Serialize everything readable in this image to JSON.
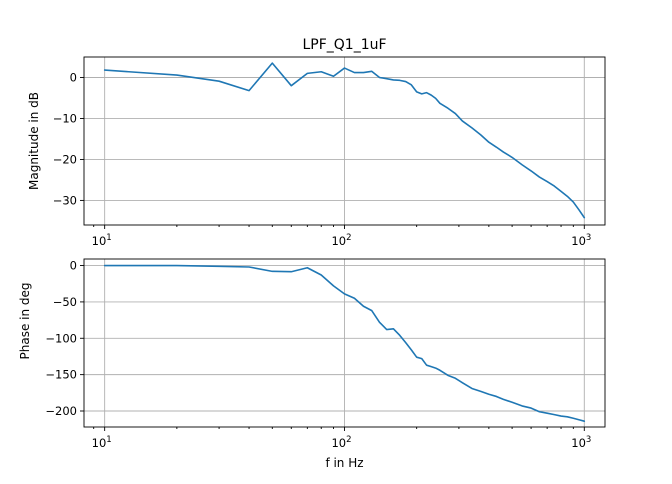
{
  "chart_data": [
    {
      "type": "line",
      "title": "LPF_Q1_1uF",
      "xlabel": "",
      "ylabel": "Magnitude in dB",
      "xscale": "log",
      "xlim": [
        8.2,
        1220
      ],
      "ylim": [
        -36,
        5
      ],
      "grid": true,
      "color": "#1f77b4",
      "x_ticks": [
        10,
        100,
        1000
      ],
      "x_tick_labels": [
        {
          "base": "10",
          "exp": "1"
        },
        {
          "base": "10",
          "exp": "2"
        },
        {
          "base": "10",
          "exp": "3"
        }
      ],
      "y_ticks": [
        0,
        -10,
        -20,
        -30
      ],
      "y_tick_labels": [
        "0",
        "−10",
        "−20",
        "−30"
      ],
      "series": [
        {
          "x": [
            10,
            20,
            30,
            40,
            50,
            60,
            70,
            80,
            90,
            100,
            110,
            120,
            130,
            140,
            150,
            160,
            170,
            180,
            190,
            200,
            210,
            220,
            230,
            240,
            250,
            270,
            290,
            310,
            340,
            370,
            400,
            430,
            460,
            500,
            550,
            600,
            650,
            700,
            750,
            800,
            850,
            900,
            950,
            1000
          ],
          "y": [
            1.8,
            0.6,
            -0.9,
            -3.2,
            3.5,
            -2.0,
            1.0,
            1.4,
            0.3,
            2.3,
            1.2,
            1.2,
            1.5,
            0.0,
            -0.3,
            -0.6,
            -0.7,
            -1.0,
            -1.8,
            -3.5,
            -4.0,
            -3.7,
            -4.3,
            -5.1,
            -6.3,
            -7.5,
            -8.8,
            -10.6,
            -12.3,
            -14.0,
            -15.8,
            -17.0,
            -18.2,
            -19.5,
            -21.3,
            -22.8,
            -24.3,
            -25.4,
            -26.5,
            -27.8,
            -29.0,
            -30.4,
            -32.3,
            -34.2
          ]
        }
      ]
    },
    {
      "type": "line",
      "title": "",
      "xlabel": "f in Hz",
      "ylabel": "Phase in deg",
      "xscale": "log",
      "xlim": [
        8.2,
        1220
      ],
      "ylim": [
        -222,
        9
      ],
      "grid": true,
      "color": "#1f77b4",
      "x_ticks": [
        10,
        100,
        1000
      ],
      "x_tick_labels": [
        {
          "base": "10",
          "exp": "1"
        },
        {
          "base": "10",
          "exp": "2"
        },
        {
          "base": "10",
          "exp": "3"
        }
      ],
      "y_ticks": [
        0,
        -50,
        -100,
        -150,
        -200
      ],
      "y_tick_labels": [
        "0",
        "−50",
        "−100",
        "−150",
        "−200"
      ],
      "series": [
        {
          "x": [
            10,
            20,
            30,
            40,
            50,
            60,
            70,
            80,
            90,
            100,
            110,
            120,
            130,
            140,
            150,
            160,
            170,
            180,
            190,
            200,
            210,
            220,
            230,
            240,
            250,
            270,
            290,
            310,
            340,
            370,
            400,
            430,
            460,
            500,
            550,
            600,
            650,
            700,
            750,
            800,
            850,
            900,
            950,
            1000
          ],
          "y": [
            0,
            0,
            -1,
            -2,
            -8,
            -8.5,
            -3,
            -13,
            -28,
            -39,
            -45,
            -56,
            -62,
            -78,
            -88,
            -87,
            -96,
            -106,
            -116,
            -126,
            -128,
            -137,
            -139,
            -141,
            -144,
            -151,
            -155,
            -161,
            -169,
            -173,
            -177,
            -180,
            -184,
            -188,
            -193,
            -196,
            -201,
            -203,
            -205,
            -207,
            -208,
            -210,
            -212,
            -214
          ]
        }
      ]
    }
  ]
}
